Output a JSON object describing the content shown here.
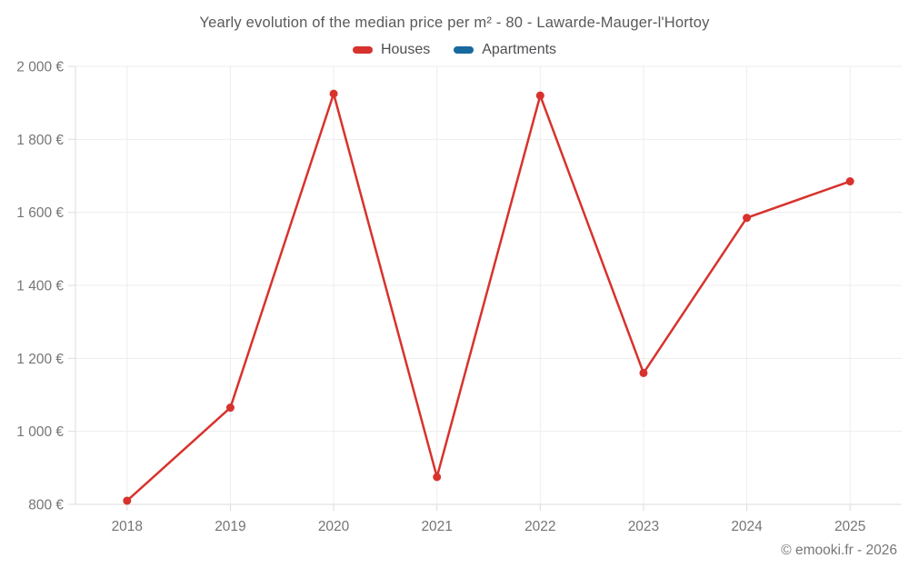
{
  "chart": {
    "title": "Yearly evolution of the median price per m² - 80 - Lawarde-Mauger-l'Hortoy",
    "footer": "© emooki.fr - 2026"
  },
  "chart_data": {
    "type": "line",
    "title": "Yearly evolution of the median price per m² - 80 - Lawarde-Mauger-l'Hortoy",
    "categories": [
      "2018",
      "2019",
      "2020",
      "2021",
      "2022",
      "2023",
      "2024",
      "2025"
    ],
    "series": [
      {
        "name": "Houses",
        "color": "#d8322c",
        "values": [
          810,
          1065,
          1925,
          875,
          1920,
          1160,
          1585,
          1685
        ]
      },
      {
        "name": "Apartments",
        "color": "#17699e",
        "values": []
      }
    ],
    "xlabel": "",
    "ylabel": "",
    "ylim": [
      800,
      2000
    ],
    "ytick_step": 200,
    "ytick_labels": [
      "800 €",
      "1 000 €",
      "1 200 €",
      "1 400 €",
      "1 600 €",
      "1 800 €",
      "2 000 €"
    ],
    "y_unit": "€",
    "grid": true,
    "legend_position": "top",
    "colors": {
      "grid_line": "#ededed",
      "axis_line": "#dcdcdc",
      "tick_label": "#757575",
      "title_text": "#58595b"
    }
  }
}
